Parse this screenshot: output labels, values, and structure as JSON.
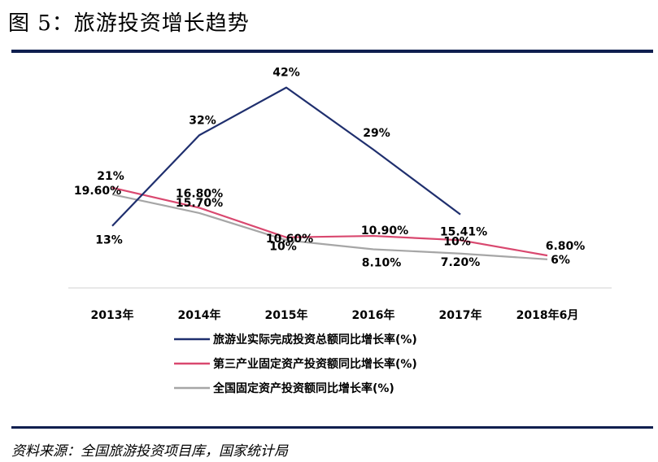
{
  "figure": {
    "title": "图 5：旅游投资增长趋势",
    "source": "资料来源：全国旅游投资项目库，国家统计局"
  },
  "chart_data": {
    "type": "line",
    "title": "",
    "xlabel": "",
    "ylabel": "",
    "categories": [
      "2013年",
      "2014年",
      "2015年",
      "2016年",
      "2017年",
      "2018年6月"
    ],
    "ylim": [
      0,
      45
    ],
    "grid": false,
    "legend_position": "bottom",
    "series": [
      {
        "name": "旅游业实际完成投资总额同比增长率(%)",
        "color": "#1f2f6e",
        "dashed": false,
        "values": [
          13,
          32,
          42,
          29,
          15.41,
          null
        ],
        "labels": [
          "13%",
          "32%",
          "42%",
          "29%",
          "15.41%",
          null
        ]
      },
      {
        "name": "第三产业固定资产投资额同比增长率(%)",
        "color": "#d9486f",
        "dashed": false,
        "values": [
          21,
          16.8,
          10.6,
          10.9,
          10,
          6.8
        ],
        "labels": [
          "21%",
          "16.80%",
          "10.60%",
          "10.90%",
          "10%",
          "6.80%"
        ]
      },
      {
        "name": "全国固定资产投资额同比增长率(%)",
        "color": "#a6a6a6",
        "dashed": false,
        "values": [
          19.6,
          15.7,
          10,
          8.1,
          7.2,
          6
        ],
        "labels": [
          "19.60%",
          "15.70%",
          "10%",
          "8.10%",
          "7.20%",
          "6%"
        ]
      }
    ]
  }
}
